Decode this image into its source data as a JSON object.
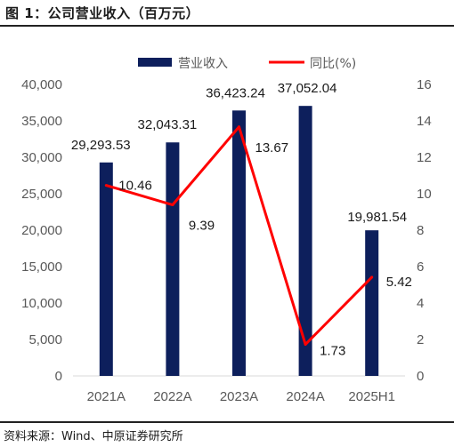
{
  "figure_title": "图 1：公司营业收入（百万元）",
  "source": "资料来源：Wind、中原证券研究所",
  "colors": {
    "bar": "#0d1f5c",
    "line": "#ff0000",
    "axis_text": "#595959"
  },
  "chart_data": {
    "type": "bar",
    "categories": [
      "2021A",
      "2022A",
      "2023A",
      "2024A",
      "2025H1"
    ],
    "series": [
      {
        "name": "营业收入",
        "type": "bar",
        "axis": "left",
        "values": [
          29293.53,
          32043.31,
          36423.24,
          37052.04,
          19981.54
        ],
        "labels": [
          "29,293.53",
          "32,043.31",
          "36,423.24",
          "37,052.04",
          "19,981.54"
        ]
      },
      {
        "name": "同比(%)",
        "type": "line",
        "axis": "right",
        "values": [
          10.46,
          9.39,
          13.67,
          1.73,
          5.42
        ],
        "labels": [
          "10.46",
          "9.39",
          "13.67",
          "1.73",
          "5.42"
        ]
      }
    ],
    "ylim_left": [
      0,
      40000
    ],
    "yticks_left": [
      "0",
      "5,000",
      "10,000",
      "15,000",
      "20,000",
      "25,000",
      "30,000",
      "35,000",
      "40,000"
    ],
    "ylim_right": [
      0,
      16
    ],
    "yticks_right": [
      "0",
      "2",
      "4",
      "6",
      "8",
      "10",
      "12",
      "14",
      "16"
    ],
    "legend_position": "top",
    "grid": false
  }
}
